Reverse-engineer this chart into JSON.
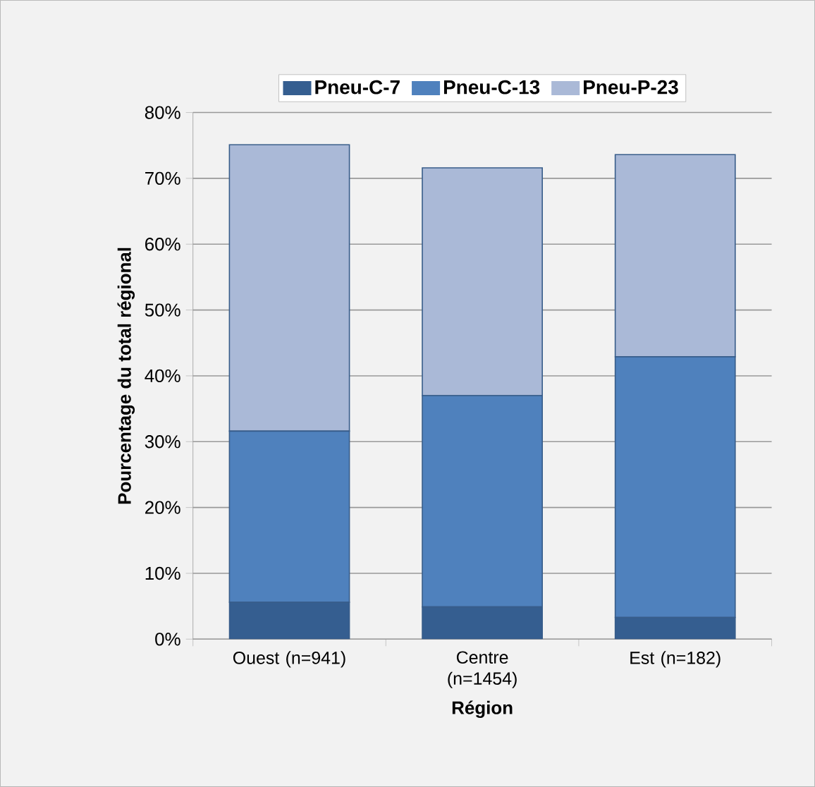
{
  "chart_data": {
    "type": "bar",
    "stacked": true,
    "categories": [
      "Ouest (n=941)",
      "Centre (n=1454)",
      "Est (n=182)"
    ],
    "xlabel": "Région",
    "ylabel": "Pourcentage du total régional",
    "series": [
      {
        "name": "Pneu-C-7",
        "color": "#355e90",
        "values": [
          5.6,
          4.9,
          3.3
        ]
      },
      {
        "name": "Pneu-C-13",
        "color": "#4f81bd",
        "values": [
          26.0,
          32.1,
          39.6
        ]
      },
      {
        "name": "Pneu-P-23",
        "color": "#aab9d7",
        "values": [
          43.5,
          34.6,
          30.7
        ]
      }
    ],
    "ylim": [
      0,
      80
    ],
    "yticks": [
      {
        "value": 0,
        "label": "0%"
      },
      {
        "value": 10,
        "label": "10%"
      },
      {
        "value": 20,
        "label": "20%"
      },
      {
        "value": 30,
        "label": "30%"
      },
      {
        "value": 40,
        "label": "40%"
      },
      {
        "value": 50,
        "label": "50%"
      },
      {
        "value": 60,
        "label": "60%"
      },
      {
        "value": 70,
        "label": "70%"
      },
      {
        "value": 80,
        "label": "80%"
      }
    ],
    "grid": "y",
    "legend": "top"
  }
}
